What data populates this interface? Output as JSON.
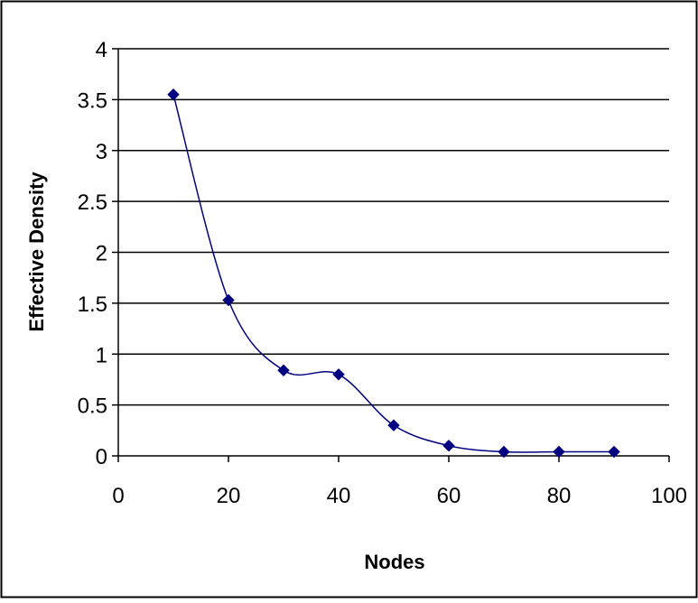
{
  "chart_data": {
    "type": "line",
    "title": "",
    "xlabel": "Nodes",
    "ylabel": "Effective Density",
    "xlim": [
      0,
      100
    ],
    "ylim": [
      0,
      4
    ],
    "x_ticks": [
      0,
      20,
      40,
      60,
      80,
      100
    ],
    "y_ticks": [
      0,
      0.5,
      1,
      1.5,
      2,
      2.5,
      3,
      3.5,
      4
    ],
    "x_tick_labels": [
      "0",
      "20",
      "40",
      "60",
      "80",
      "100"
    ],
    "y_tick_labels": [
      "0",
      "0.5",
      "1",
      "1.5",
      "2",
      "2.5",
      "3",
      "3.5",
      "4"
    ],
    "grid": "horizontal",
    "legend": "none",
    "smooth": true,
    "series": [
      {
        "color": "#000080",
        "marker": "diamond",
        "x": [
          10,
          20,
          30,
          40,
          50,
          60,
          70,
          80,
          90
        ],
        "y": [
          3.55,
          1.53,
          0.84,
          0.8,
          0.3,
          0.1,
          0.04,
          0.04,
          0.04
        ]
      }
    ]
  }
}
